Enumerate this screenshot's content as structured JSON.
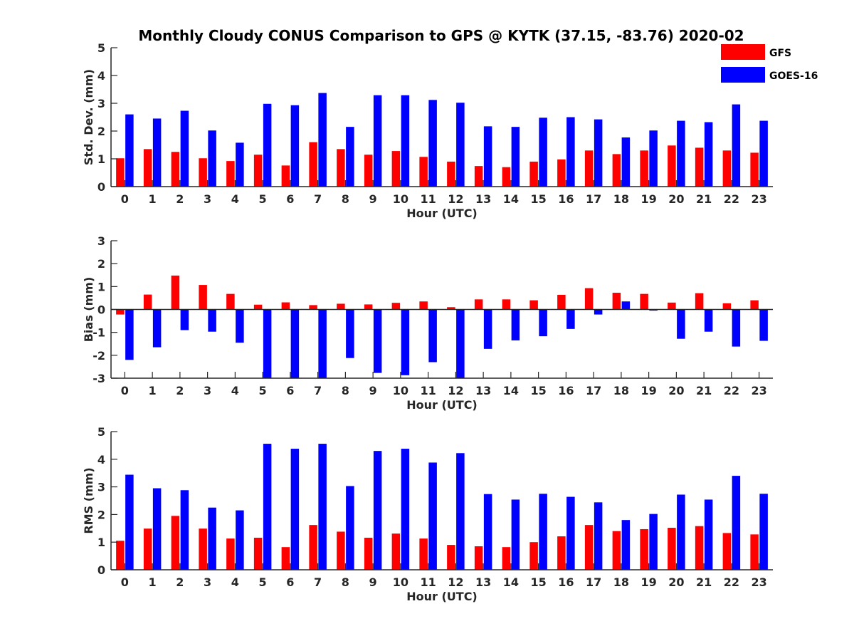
{
  "chart_data": {
    "title": "Monthly Cloudy CONUS Comparison to GPS @ KYTK (37.15, -83.76) 2020-02",
    "type": "bar",
    "categories": [
      "0",
      "1",
      "2",
      "3",
      "4",
      "5",
      "6",
      "7",
      "8",
      "9",
      "10",
      "11",
      "12",
      "13",
      "14",
      "15",
      "16",
      "17",
      "18",
      "19",
      "20",
      "21",
      "22",
      "23"
    ],
    "legend": {
      "placement": "top-right",
      "entries": [
        {
          "name": "GFS",
          "color": "#ff0000"
        },
        {
          "name": "GOES-16",
          "color": "#0000ff"
        }
      ]
    },
    "panels": [
      {
        "id": "std",
        "xlabel": "Hour (UTC)",
        "ylabel": "Std. Dev. (mm)",
        "ylim": [
          0,
          5
        ],
        "yticks": [
          "0",
          "1",
          "2",
          "3",
          "4",
          "5"
        ],
        "series": [
          {
            "name": "GFS",
            "values": [
              1.02,
              1.35,
              1.25,
              1.02,
              0.92,
              1.15,
              0.76,
              1.6,
              1.35,
              1.15,
              1.28,
              1.07,
              0.9,
              0.74,
              0.7,
              0.9,
              0.98,
              1.3,
              1.17,
              1.3,
              1.48,
              1.4,
              1.3,
              1.22
            ]
          },
          {
            "name": "GOES-16",
            "values": [
              2.6,
              2.45,
              2.73,
              2.02,
              1.58,
              2.98,
              2.93,
              3.37,
              2.15,
              3.29,
              3.29,
              3.12,
              3.02,
              2.17,
              2.15,
              2.48,
              2.5,
              2.42,
              1.77,
              2.02,
              2.37,
              2.32,
              2.96,
              2.37
            ]
          }
        ]
      },
      {
        "id": "bias",
        "xlabel": "Hour (UTC)",
        "ylabel": "Bias (mm)",
        "ylim": [
          -3,
          3
        ],
        "yticks": [
          "-3",
          "-2",
          "-1",
          "0",
          "1",
          "2",
          "3"
        ],
        "series": [
          {
            "name": "GFS",
            "values": [
              -0.22,
              0.65,
              1.48,
              1.07,
              0.68,
              0.21,
              0.31,
              0.19,
              0.25,
              0.22,
              0.29,
              0.35,
              0.1,
              0.44,
              0.44,
              0.4,
              0.64,
              0.93,
              0.73,
              0.68,
              0.3,
              0.71,
              0.27,
              0.4
            ]
          },
          {
            "name": "GOES-16",
            "values": [
              -2.2,
              -1.65,
              -0.9,
              -0.97,
              -1.45,
              -3.0,
              -3.0,
              -3.0,
              -2.12,
              -2.77,
              -2.87,
              -2.3,
              -3.0,
              -1.72,
              -1.35,
              -1.17,
              -0.85,
              -0.22,
              0.35,
              -0.05,
              -1.28,
              -0.97,
              -1.62,
              -1.37
            ]
          }
        ]
      },
      {
        "id": "rms",
        "xlabel": "Hour (UTC)",
        "ylabel": "RMS (mm)",
        "ylim": [
          0,
          5
        ],
        "yticks": [
          "0",
          "1",
          "2",
          "3",
          "4",
          "5"
        ],
        "series": [
          {
            "name": "GFS",
            "values": [
              1.05,
              1.49,
              1.95,
              1.49,
              1.13,
              1.16,
              0.82,
              1.62,
              1.38,
              1.16,
              1.31,
              1.13,
              0.9,
              0.85,
              0.82,
              1.0,
              1.21,
              1.62,
              1.4,
              1.47,
              1.52,
              1.58,
              1.33,
              1.28
            ]
          },
          {
            "name": "GOES-16",
            "values": [
              3.44,
              2.95,
              2.88,
              2.25,
              2.15,
              4.56,
              4.38,
              4.56,
              3.03,
              4.3,
              4.38,
              3.88,
              4.22,
              2.74,
              2.54,
              2.75,
              2.64,
              2.44,
              1.8,
              2.02,
              2.72,
              2.54,
              3.4,
              2.75
            ]
          }
        ]
      }
    ]
  }
}
